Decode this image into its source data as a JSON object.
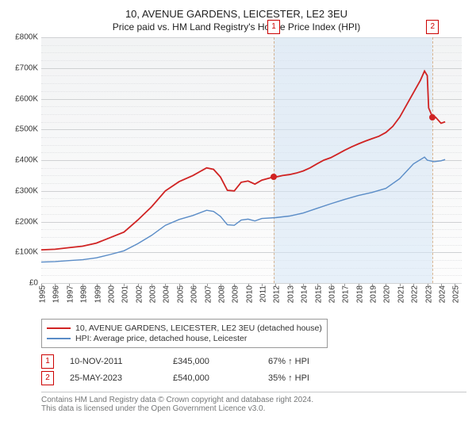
{
  "title": "10, AVENUE GARDENS, LEICESTER, LE2 3EU",
  "subtitle": "Price paid vs. HM Land Registry's House Price Index (HPI)",
  "chart": {
    "type": "line",
    "background_gradient_top": "#f2f3f4",
    "background_gradient_bottom": "#fdfdfd",
    "grid_color": "#cfd1d3",
    "minor_grid_color": "#e2e3e5",
    "axis_color": "#999",
    "text_color": "#333",
    "highlight_band_color": "#d6e6f5",
    "highlight_band_opacity": 0.55,
    "ylim": [
      0,
      800
    ],
    "y_tick_step": 100,
    "y_tick_prefix": "£",
    "y_tick_suffix": "K",
    "y_minor_count": 3,
    "x_years": [
      1995,
      1996,
      1997,
      1998,
      1999,
      2000,
      2001,
      2002,
      2003,
      2004,
      2005,
      2006,
      2007,
      2008,
      2009,
      2010,
      2011,
      2012,
      2013,
      2014,
      2015,
      2016,
      2017,
      2018,
      2019,
      2020,
      2021,
      2022,
      2023,
      2024,
      2025
    ],
    "xlim_year": [
      1995,
      2025.5
    ],
    "series": [
      {
        "name": "10, AVENUE GARDENS, LEICESTER, LE2 3EU (detached house)",
        "color": "#d02323",
        "width": 1.8,
        "data": [
          [
            1995,
            108
          ],
          [
            1996,
            110
          ],
          [
            1997,
            115
          ],
          [
            1998,
            120
          ],
          [
            1999,
            130
          ],
          [
            2000,
            148
          ],
          [
            2001,
            166
          ],
          [
            2002,
            205
          ],
          [
            2003,
            248
          ],
          [
            2004,
            300
          ],
          [
            2005,
            330
          ],
          [
            2006,
            350
          ],
          [
            2007,
            375
          ],
          [
            2007.5,
            370
          ],
          [
            2008,
            345
          ],
          [
            2008.5,
            302
          ],
          [
            2009,
            300
          ],
          [
            2009.5,
            328
          ],
          [
            2010,
            332
          ],
          [
            2010.5,
            322
          ],
          [
            2011,
            335
          ],
          [
            2011.83,
            345
          ],
          [
            2012,
            345
          ],
          [
            2012.5,
            350
          ],
          [
            2013,
            353
          ],
          [
            2013.5,
            358
          ],
          [
            2014,
            365
          ],
          [
            2014.5,
            375
          ],
          [
            2015,
            388
          ],
          [
            2015.5,
            400
          ],
          [
            2016,
            408
          ],
          [
            2016.5,
            420
          ],
          [
            2017,
            432
          ],
          [
            2017.5,
            443
          ],
          [
            2018,
            453
          ],
          [
            2018.5,
            462
          ],
          [
            2019,
            470
          ],
          [
            2019.5,
            478
          ],
          [
            2020,
            490
          ],
          [
            2020.5,
            510
          ],
          [
            2021,
            540
          ],
          [
            2021.5,
            580
          ],
          [
            2022,
            620
          ],
          [
            2022.5,
            660
          ],
          [
            2022.8,
            690
          ],
          [
            2023,
            675
          ],
          [
            2023.1,
            570
          ],
          [
            2023.39,
            540
          ],
          [
            2023.6,
            540
          ],
          [
            2024,
            520
          ],
          [
            2024.3,
            525
          ]
        ]
      },
      {
        "name": "HPI: Average price, detached house, Leicester",
        "color": "#5a8cc7",
        "width": 1.4,
        "data": [
          [
            1995,
            68
          ],
          [
            1996,
            70
          ],
          [
            1997,
            73
          ],
          [
            1998,
            76
          ],
          [
            1999,
            82
          ],
          [
            2000,
            93
          ],
          [
            2001,
            105
          ],
          [
            2002,
            128
          ],
          [
            2003,
            155
          ],
          [
            2004,
            188
          ],
          [
            2005,
            207
          ],
          [
            2006,
            220
          ],
          [
            2007,
            237
          ],
          [
            2007.5,
            233
          ],
          [
            2008,
            217
          ],
          [
            2008.5,
            190
          ],
          [
            2009,
            188
          ],
          [
            2009.5,
            205
          ],
          [
            2010,
            208
          ],
          [
            2010.5,
            202
          ],
          [
            2011,
            210
          ],
          [
            2012,
            213
          ],
          [
            2013,
            218
          ],
          [
            2014,
            228
          ],
          [
            2015,
            243
          ],
          [
            2016,
            258
          ],
          [
            2017,
            272
          ],
          [
            2018,
            285
          ],
          [
            2019,
            295
          ],
          [
            2020,
            308
          ],
          [
            2021,
            340
          ],
          [
            2022,
            388
          ],
          [
            2022.8,
            410
          ],
          [
            2023,
            400
          ],
          [
            2023.5,
            395
          ],
          [
            2024,
            398
          ],
          [
            2024.3,
            402
          ]
        ]
      }
    ],
    "sale_markers": [
      {
        "num": "1",
        "year": 2011.86,
        "value": 345,
        "color": "#d02323"
      },
      {
        "num": "2",
        "year": 2023.39,
        "value": 540,
        "color": "#d02323"
      }
    ],
    "highlight_bands": [
      {
        "start_year": 2011.86,
        "end_year": 2023.39
      }
    ]
  },
  "legend": {
    "border_color": "#999",
    "items": [
      {
        "color": "#d02323",
        "label": "10, AVENUE GARDENS, LEICESTER, LE2 3EU (detached house)"
      },
      {
        "color": "#5a8cc7",
        "label": "HPI: Average price, detached house, Leicester"
      }
    ]
  },
  "sales": [
    {
      "num": "1",
      "date": "10-NOV-2011",
      "price": "£345,000",
      "hpi": "67% ↑ HPI"
    },
    {
      "num": "2",
      "date": "25-MAY-2023",
      "price": "£540,000",
      "hpi": "35% ↑ HPI"
    }
  ],
  "footer": {
    "line1": "Contains HM Land Registry data © Crown copyright and database right 2024.",
    "line2": "This data is licensed under the Open Government Licence v3.0."
  }
}
